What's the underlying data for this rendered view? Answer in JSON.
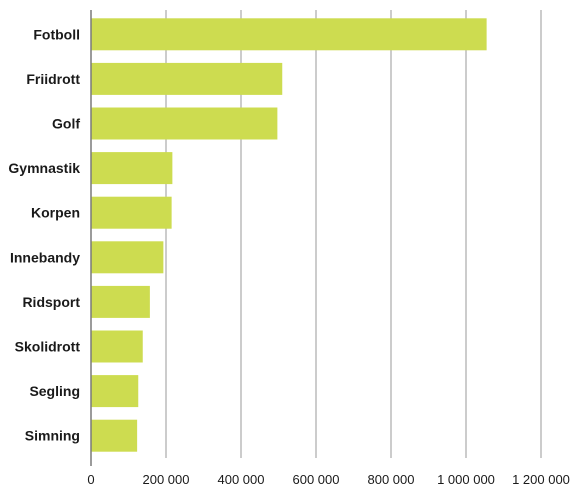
{
  "chart_data": {
    "type": "bar",
    "orientation": "horizontal",
    "title": "",
    "xlabel": "",
    "ylabel": "",
    "categories": [
      "Fotboll",
      "Friidrott",
      "Golf",
      "Gymnastik",
      "Korpen",
      "Innebandy",
      "Ridsport",
      "Skolidrott",
      "Segling",
      "Simning"
    ],
    "values": [
      1055000,
      510000,
      497000,
      217000,
      215000,
      193000,
      157000,
      138000,
      126000,
      123000
    ],
    "xlim": [
      0,
      1200000
    ],
    "x_ticks": [
      0,
      200000,
      400000,
      600000,
      800000,
      1000000,
      1200000
    ],
    "x_tick_labels": [
      "0",
      "200 000",
      "400 000",
      "600 000",
      "800 000",
      "1 000 000",
      "1 200 000"
    ],
    "grid": "vertical",
    "legend": "none",
    "colors": {
      "bar": "#cddc50",
      "grid": "#9a9a9a",
      "axis": "#7a7a7a"
    }
  }
}
